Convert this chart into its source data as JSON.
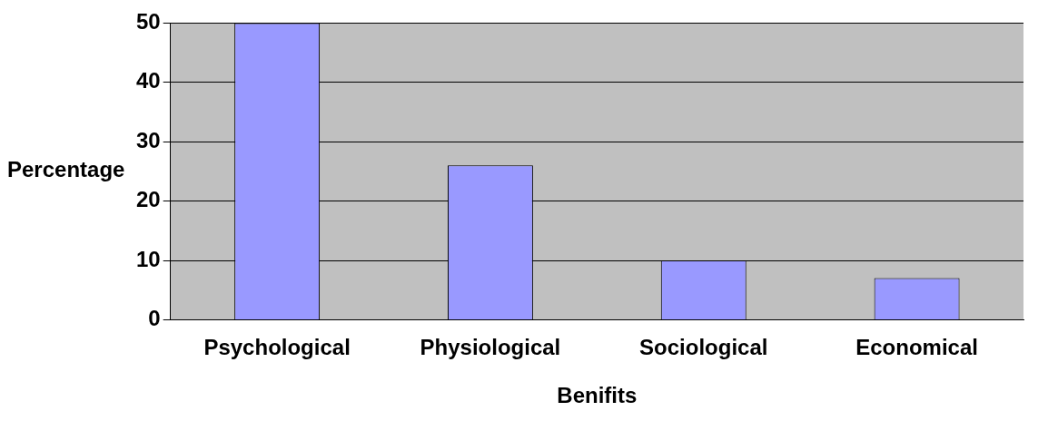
{
  "chart_data": {
    "type": "bar",
    "xlabel": "Benifits",
    "ylabel": "Percentage",
    "categories": [
      "Psychological",
      "Physiological",
      "Sociological",
      "Economical"
    ],
    "values": [
      50,
      26,
      10,
      7
    ],
    "color": "#9999ff",
    "ylim": [
      0,
      50
    ],
    "yticks": [
      0,
      10,
      20,
      30,
      40,
      50
    ],
    "grid": "y",
    "legend": false
  }
}
